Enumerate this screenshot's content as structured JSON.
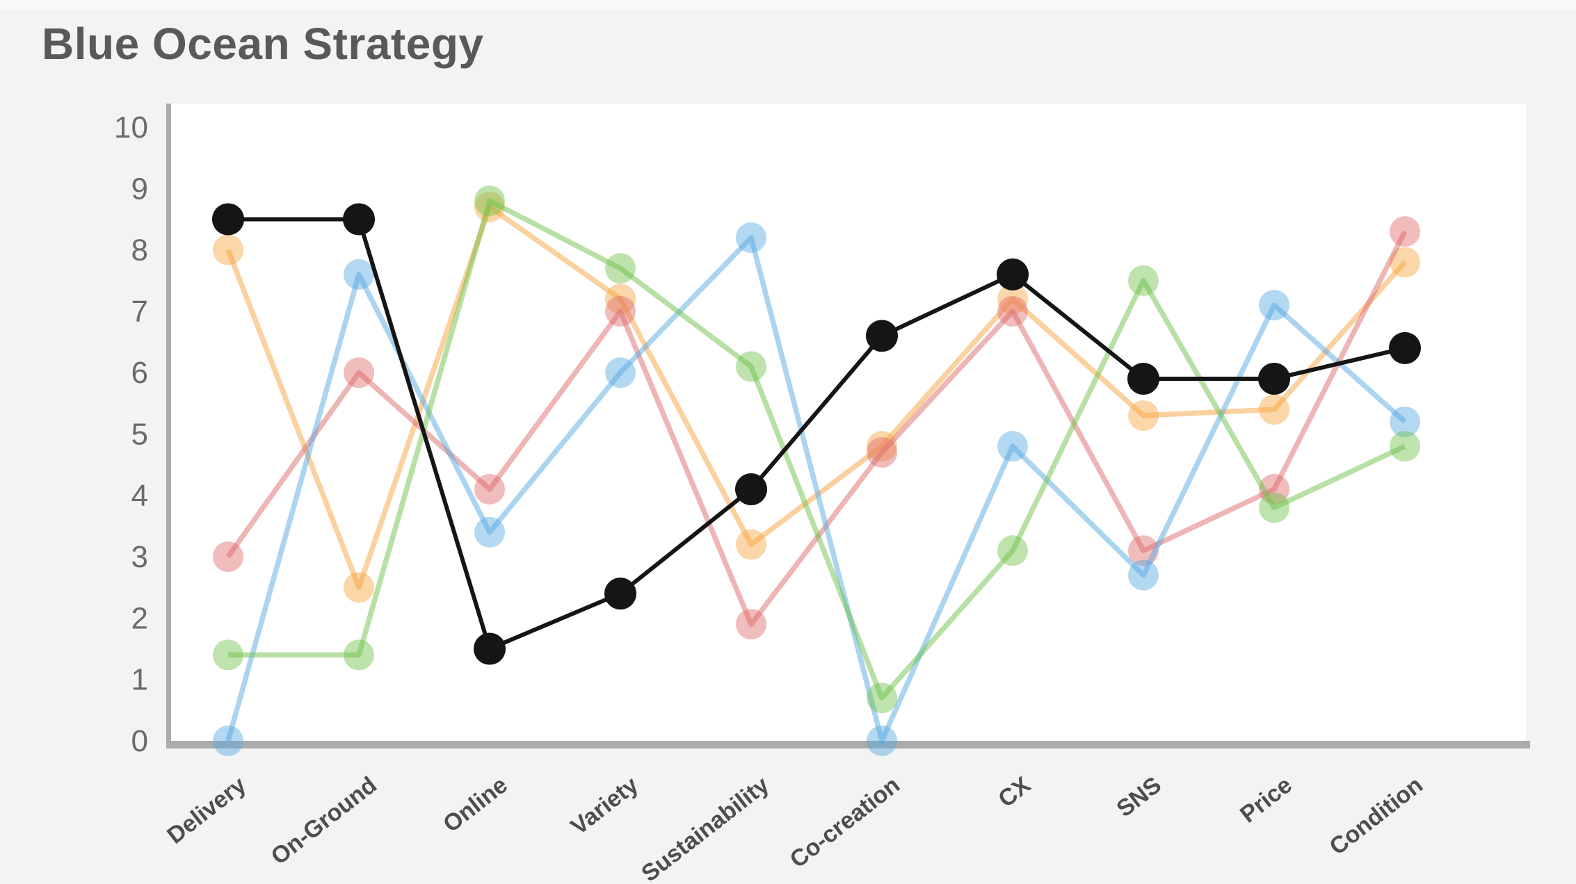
{
  "title": "Blue Ocean Strategy",
  "colors": {
    "background": "#f3f3f4",
    "background_top_strip": "#fafafa",
    "plot_background": "#ffffff",
    "axis_bar": "#ababab",
    "title_text": "#59595b",
    "y_tick_text": "#6b6b6b",
    "x_label_text": "#4d4d4d",
    "series_black": "#151515",
    "series_blue": "#57A9E2",
    "series_red": "#DE6B6B",
    "series_green": "#6FC24A",
    "series_orange": "#F7A33F"
  },
  "y_axis": {
    "min": 0,
    "max": 10,
    "step": 1,
    "tick_labels": [
      "10",
      "9",
      "8",
      "7",
      "6",
      "5",
      "4",
      "3",
      "2",
      "1",
      "0"
    ]
  },
  "chart_data": {
    "type": "line",
    "title": "Blue Ocean Strategy",
    "categories": [
      "Delivery",
      "On-Ground",
      "Online",
      "Variety",
      "Sustainability",
      "Co-creation",
      "CX",
      "SNS",
      "Price",
      "Condition"
    ],
    "ylim": [
      0,
      10
    ],
    "grid": false,
    "legend": "none",
    "series": [
      {
        "name": "orange",
        "color": "#F7A33F",
        "line_opacity": 0.5,
        "marker_opacity": 0.45,
        "line_width": 7.5,
        "marker_radius": 22,
        "values": [
          8.0,
          2.5,
          8.7,
          7.2,
          3.2,
          4.8,
          7.2,
          5.3,
          5.4,
          7.8
        ]
      },
      {
        "name": "red",
        "color": "#DE6B6B",
        "line_opacity": 0.5,
        "marker_opacity": 0.45,
        "line_width": 7.5,
        "marker_radius": 22,
        "values": [
          3.0,
          6.0,
          4.1,
          7.0,
          1.9,
          4.7,
          7.0,
          3.1,
          4.1,
          8.3
        ]
      },
      {
        "name": "blue",
        "color": "#57A9E2",
        "line_opacity": 0.5,
        "marker_opacity": 0.45,
        "line_width": 7.5,
        "marker_radius": 22,
        "values": [
          0,
          7.6,
          3.4,
          6.0,
          8.2,
          0,
          4.8,
          2.7,
          7.1,
          5.2
        ]
      },
      {
        "name": "green",
        "color": "#6FC24A",
        "line_opacity": 0.5,
        "marker_opacity": 0.45,
        "line_width": 7.5,
        "marker_radius": 22,
        "values": [
          1.4,
          1.4,
          8.8,
          7.7,
          6.1,
          0.7,
          3.1,
          7.5,
          3.8,
          4.8
        ]
      },
      {
        "name": "black",
        "color": "#151515",
        "line_opacity": 1,
        "marker_opacity": 1,
        "line_width": 6,
        "marker_radius": 23,
        "values": [
          8.5,
          8.5,
          1.5,
          2.4,
          4.1,
          6.6,
          7.6,
          5.9,
          5.9,
          6.4
        ]
      }
    ]
  }
}
